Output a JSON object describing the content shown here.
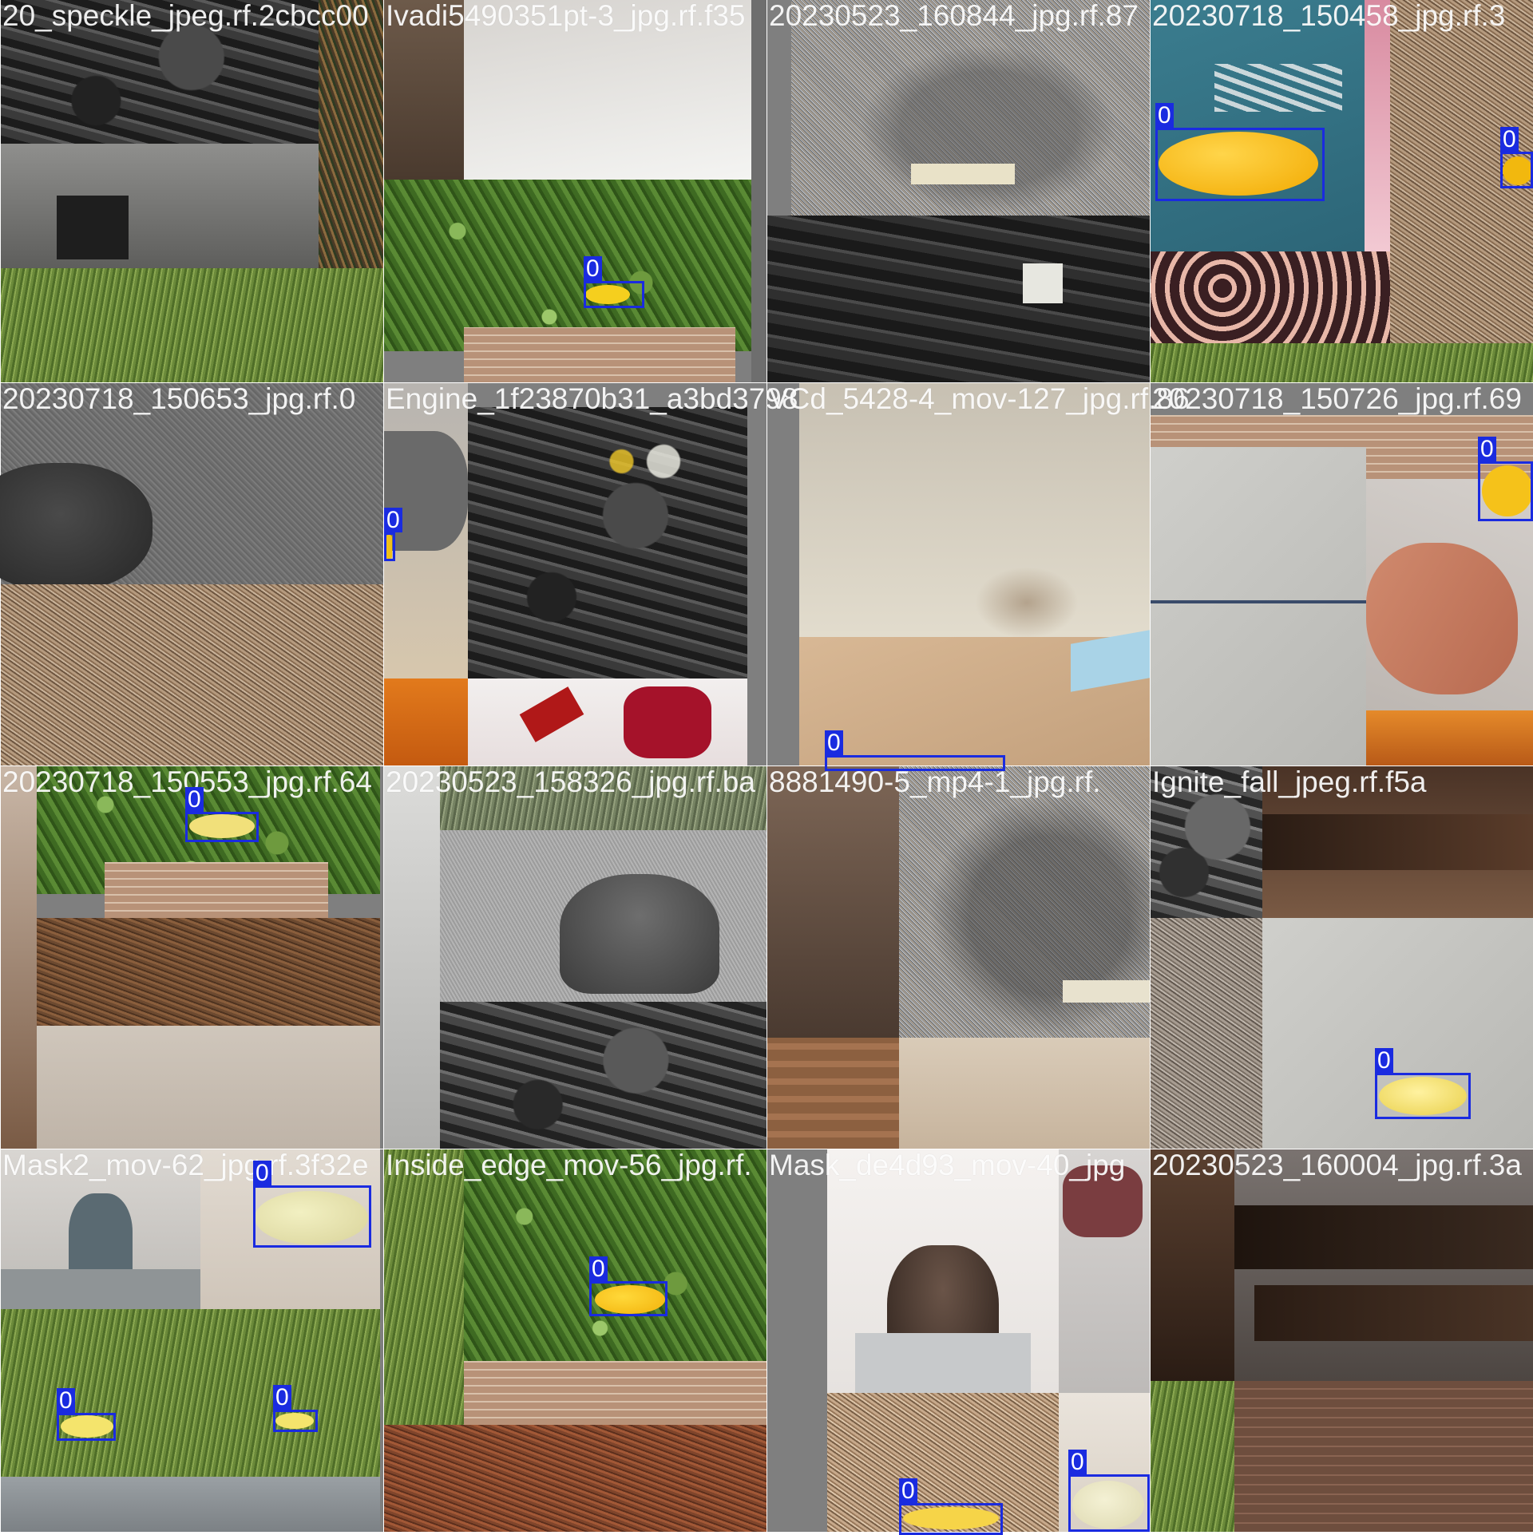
{
  "mosaic": {
    "tiles": [
      {
        "label": "20_speckle_jpeg.rf.2cbcc00",
        "label_overlap": "",
        "boxes": []
      },
      {
        "label": "Ivadi5490351pt-3_jpg.rf.f35",
        "label_overlap": "",
        "boxes": [
          "0"
        ]
      },
      {
        "label": "20230523_160844_jpg.rf.87",
        "label_overlap": "",
        "boxes": []
      },
      {
        "label": "20230718_150458_jpg.rf.3",
        "label_overlap": "",
        "boxes": [
          "0",
          "0"
        ]
      },
      {
        "label": "20230718_150653_jpg.rf.0",
        "label_overlap": "",
        "boxes": []
      },
      {
        "label": "Engine_1f23870b31_a3bd3798",
        "label_overlap": "",
        "boxes": [
          "0"
        ]
      },
      {
        "label": "VCd_5428-4_mov-127_jpg.rf.86",
        "label_overlap": "",
        "boxes": [
          "0"
        ]
      },
      {
        "label": "20230718_150726_jpg.rf.69",
        "label_overlap": "",
        "boxes": [
          "0"
        ]
      },
      {
        "label": "20230718_150553_jpg.rf.64",
        "label_overlap": "",
        "boxes": [
          "0"
        ]
      },
      {
        "label": "20230523_158326_jpg.rf.ba",
        "label_overlap": "",
        "boxes": []
      },
      {
        "label": "8881490-5_mp4-1_jpg.rf.",
        "label_overlap": "",
        "boxes": []
      },
      {
        "label": "Ignite_fall_jpeg.rf.f5a",
        "label_overlap": "",
        "boxes": [
          "0"
        ]
      },
      {
        "label": "Mask2_mov-62_jpg.rf.3f32e",
        "label_overlap": "",
        "boxes": [
          "0",
          "0",
          "0"
        ]
      },
      {
        "label": "Inside_edge_mov-56_jpg.rf.",
        "label_overlap": "",
        "boxes": [
          "0"
        ]
      },
      {
        "label": "Mask_de4d93_mov-40_jpg",
        "label_overlap": "",
        "boxes": [
          "0",
          "0"
        ]
      },
      {
        "label": "20230523_160004_jpg.rf.3a",
        "label_overlap": "",
        "boxes": []
      }
    ]
  },
  "colors": {
    "box": "#1a2be0",
    "egg_yellow": "#f2c21c",
    "egg_pale": "#efe7a8"
  }
}
